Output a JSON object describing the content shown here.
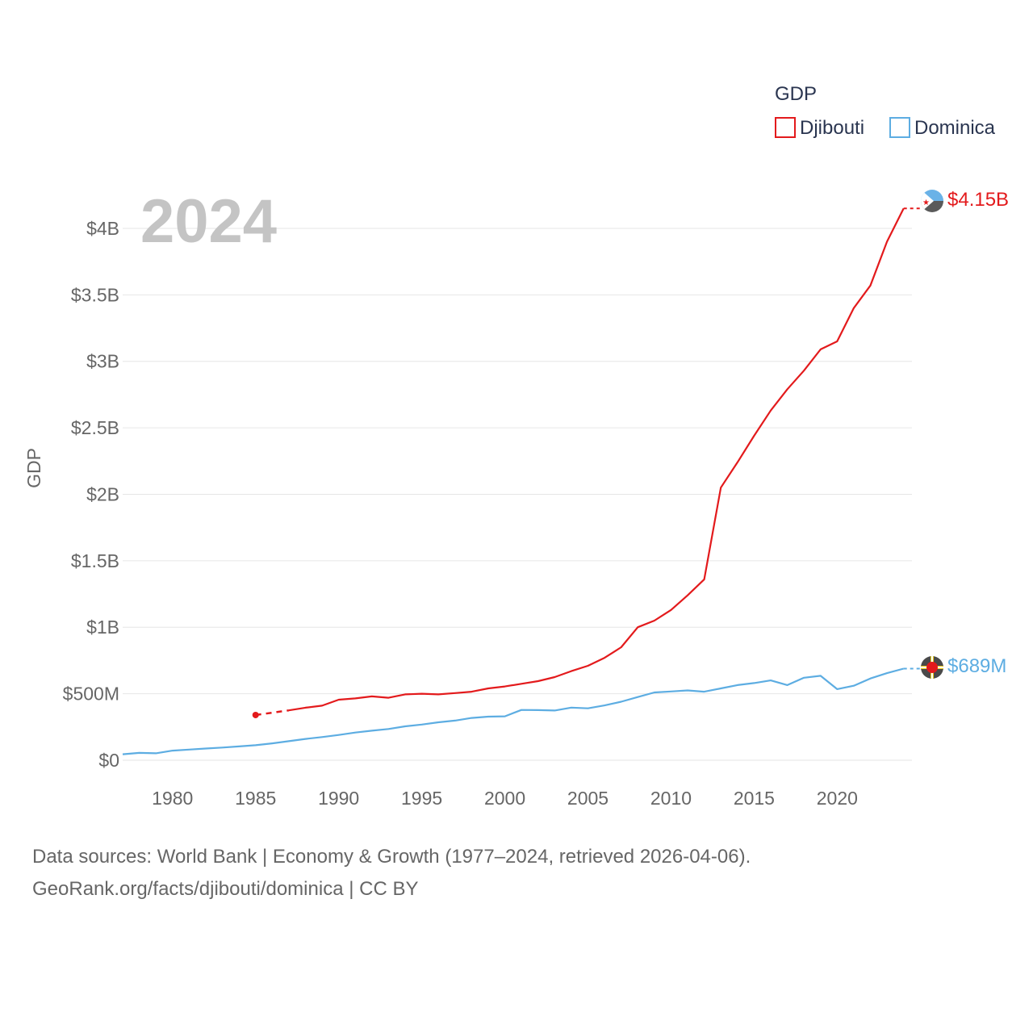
{
  "chart_data": {
    "type": "line",
    "title": "GDP",
    "ylabel": "GDP",
    "xlabel": "",
    "current_year": "2024",
    "xlim": [
      1977,
      2024.5
    ],
    "ylim": [
      0,
      4200
    ],
    "unit": "millions USD",
    "x_ticks": [
      1980,
      1985,
      1990,
      1995,
      2000,
      2005,
      2010,
      2015,
      2020
    ],
    "y_ticks": [
      {
        "value": 0,
        "label": "$0"
      },
      {
        "value": 500,
        "label": "$500M"
      },
      {
        "value": 1000,
        "label": "$1B"
      },
      {
        "value": 1500,
        "label": "$1.5B"
      },
      {
        "value": 2000,
        "label": "$2B"
      },
      {
        "value": 2500,
        "label": "$2.5B"
      },
      {
        "value": 3000,
        "label": "$3B"
      },
      {
        "value": 3500,
        "label": "$3.5B"
      },
      {
        "value": 4000,
        "label": "$4B"
      }
    ],
    "grid": true,
    "legend_position": "top-right",
    "series": [
      {
        "name": "Djibouti",
        "color": "#e31a1c",
        "end_label": "$4.15B",
        "gap_after_first": true,
        "x": [
          1985,
          1987,
          1988,
          1989,
          1990,
          1991,
          1992,
          1993,
          1994,
          1995,
          1996,
          1997,
          1998,
          1999,
          2000,
          2001,
          2002,
          2003,
          2004,
          2005,
          2006,
          2007,
          2008,
          2009,
          2010,
          2011,
          2012,
          2013,
          2014,
          2015,
          2016,
          2017,
          2018,
          2019,
          2020,
          2021,
          2022,
          2023,
          2024
        ],
        "values": [
          340,
          375,
          395,
          410,
          455,
          465,
          480,
          470,
          495,
          500,
          495,
          505,
          515,
          540,
          555,
          575,
          595,
          625,
          670,
          710,
          770,
          850,
          1000,
          1050,
          1130,
          1240,
          1360,
          2050,
          2240,
          2440,
          2630,
          2790,
          2930,
          3090,
          3150,
          3400,
          3570,
          3900,
          4150
        ]
      },
      {
        "name": "Dominica",
        "color": "#5dade2",
        "end_label": "$689M",
        "gap_after_first": false,
        "x": [
          1977,
          1978,
          1979,
          1980,
          1981,
          1982,
          1983,
          1984,
          1985,
          1986,
          1987,
          1988,
          1989,
          1990,
          1991,
          1992,
          1993,
          1994,
          1995,
          1996,
          1997,
          1998,
          1999,
          2000,
          2001,
          2002,
          2003,
          2004,
          2005,
          2006,
          2007,
          2008,
          2009,
          2010,
          2011,
          2012,
          2013,
          2014,
          2015,
          2016,
          2017,
          2018,
          2019,
          2020,
          2021,
          2022,
          2023,
          2024
        ],
        "values": [
          45,
          55,
          52,
          72,
          80,
          88,
          95,
          104,
          113,
          127,
          143,
          160,
          174,
          190,
          208,
          222,
          235,
          255,
          268,
          285,
          298,
          318,
          328,
          330,
          378,
          377,
          374,
          396,
          390,
          412,
          440,
          475,
          510,
          517,
          525,
          515,
          540,
          565,
          580,
          600,
          565,
          620,
          635,
          535,
          560,
          615,
          655,
          689
        ]
      }
    ]
  },
  "footer": {
    "line1": "Data sources: World Bank | Economy & Growth (1977–2024, retrieved 2026-04-06).",
    "line2": "GeoRank.org/facts/djibouti/dominica | CC BY"
  }
}
